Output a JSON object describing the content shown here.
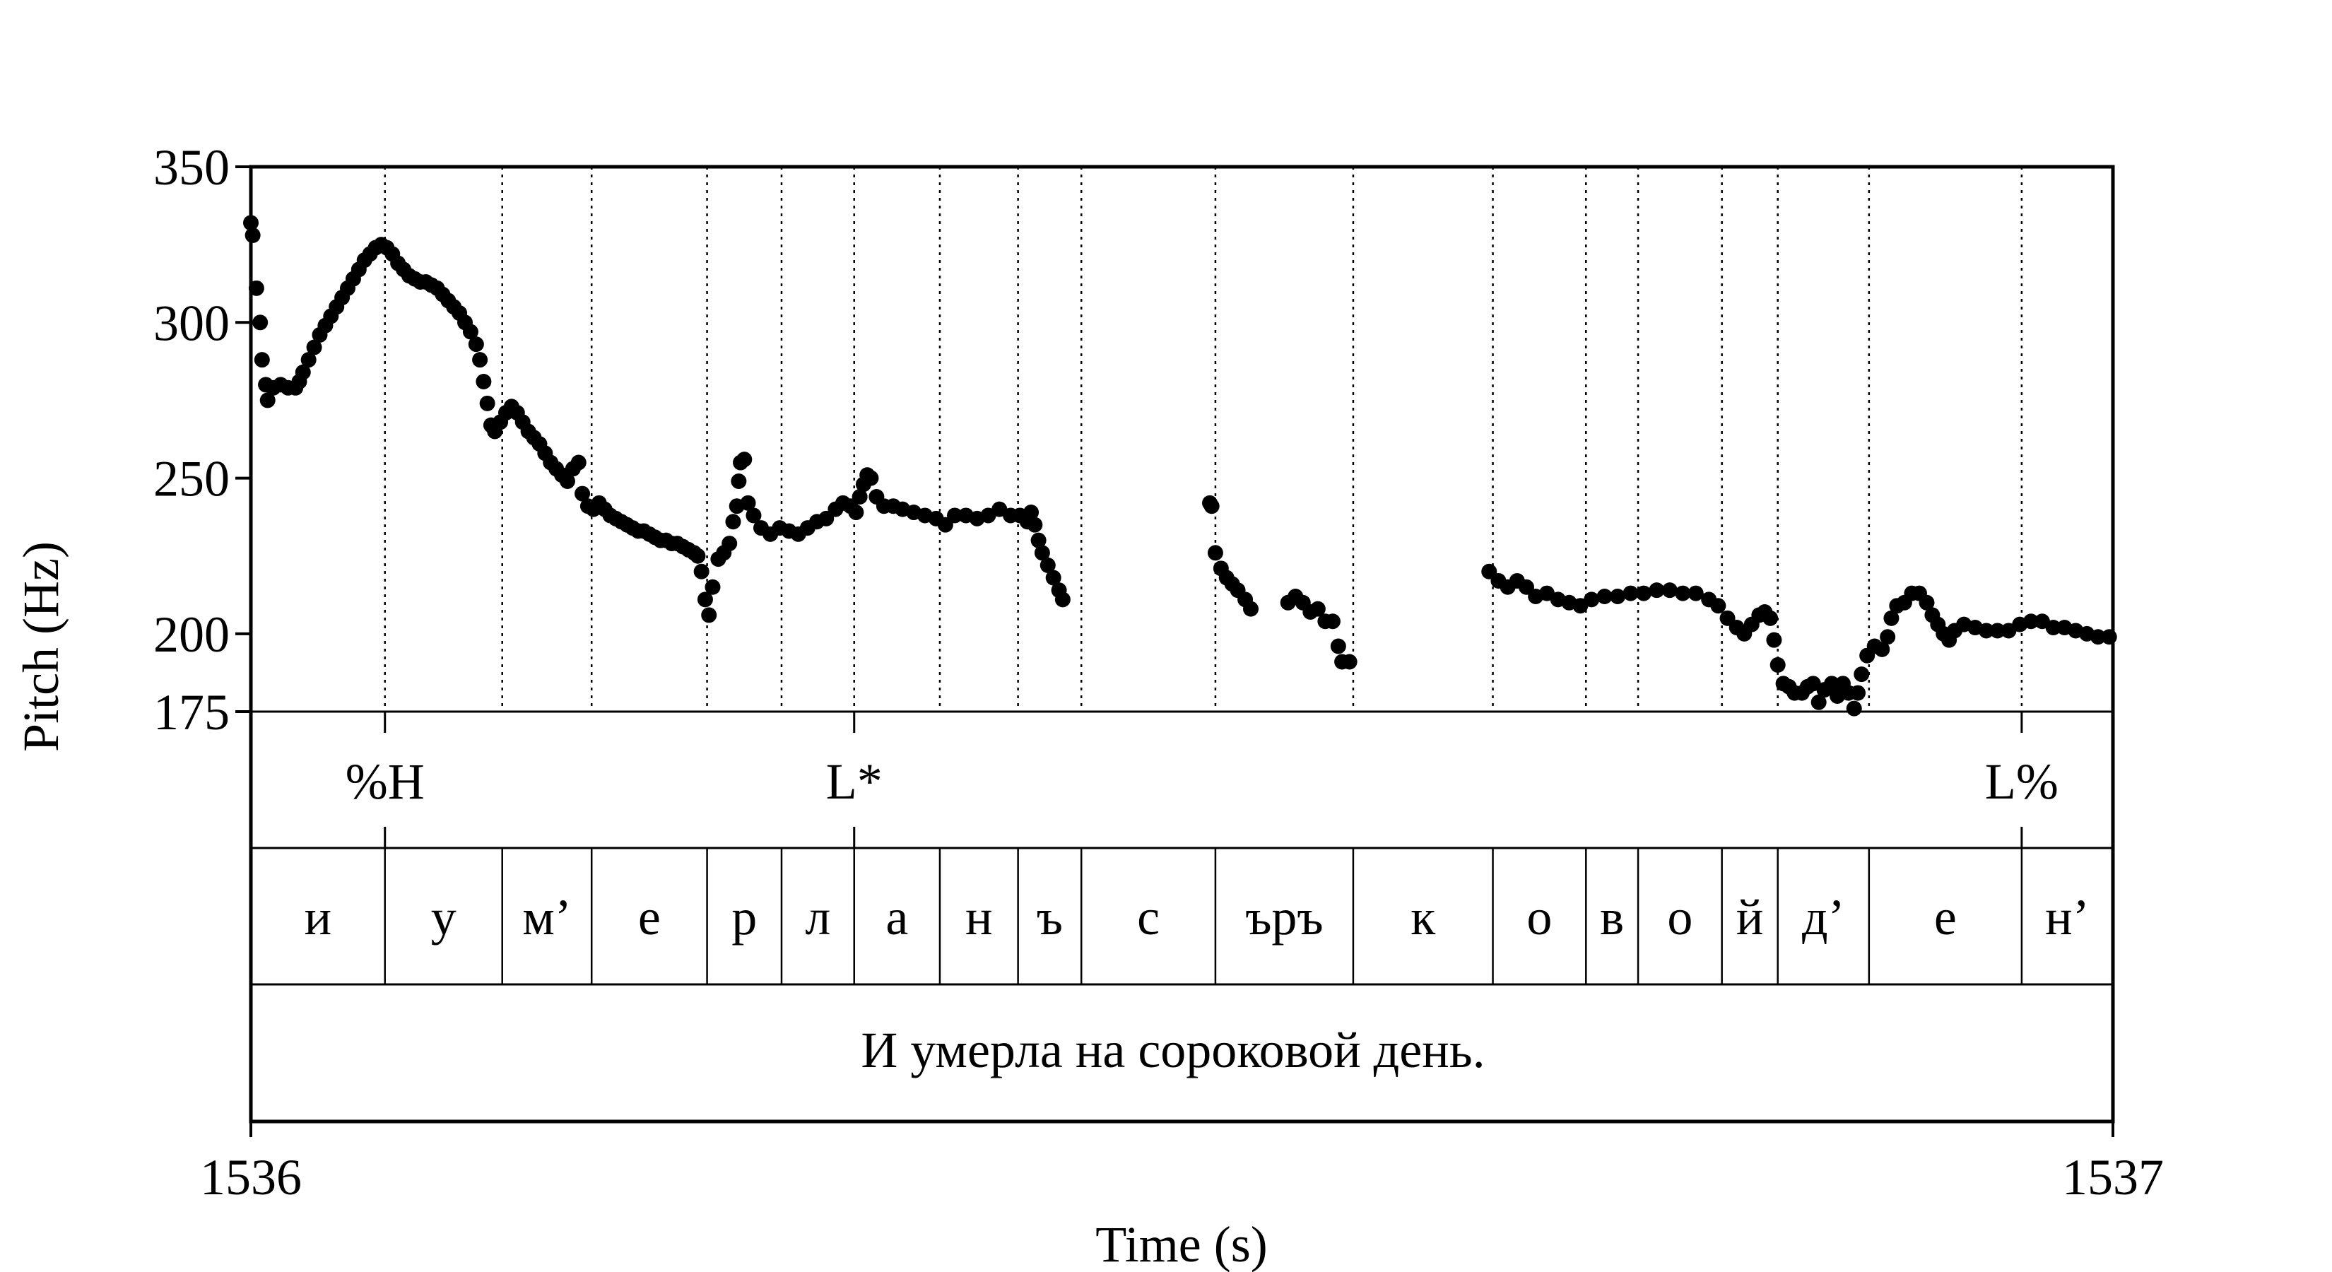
{
  "chart_data": {
    "type": "scatter",
    "xlabel": "Time (s)",
    "ylabel": "Pitch (Hz)",
    "xlim": [
      1536,
      1537
    ],
    "ylim": [
      175,
      350
    ],
    "x_ticks": [
      "1536",
      "1537"
    ],
    "y_ticks": [
      350,
      300,
      250,
      200,
      175
    ],
    "y_tick_labels": [
      "350",
      "300",
      "250",
      "200",
      "175"
    ],
    "grid": "dotted vertical lines at segment boundaries",
    "marker_color": "#000000",
    "pitch_points": [
      [
        1536.0,
        332
      ],
      [
        1536.001,
        328
      ],
      [
        1536.003,
        311
      ],
      [
        1536.005,
        300
      ],
      [
        1536.006,
        288
      ],
      [
        1536.008,
        280
      ],
      [
        1536.009,
        275
      ],
      [
        1536.012,
        279
      ],
      [
        1536.016,
        280
      ],
      [
        1536.02,
        279
      ],
      [
        1536.024,
        279
      ],
      [
        1536.026,
        281
      ],
      [
        1536.028,
        284
      ],
      [
        1536.031,
        288
      ],
      [
        1536.034,
        292
      ],
      [
        1536.037,
        296
      ],
      [
        1536.04,
        299
      ],
      [
        1536.043,
        302
      ],
      [
        1536.046,
        305
      ],
      [
        1536.049,
        308
      ],
      [
        1536.052,
        311
      ],
      [
        1536.055,
        314
      ],
      [
        1536.058,
        317
      ],
      [
        1536.061,
        320
      ],
      [
        1536.064,
        322
      ],
      [
        1536.067,
        324
      ],
      [
        1536.07,
        325
      ],
      [
        1536.073,
        324
      ],
      [
        1536.076,
        322
      ],
      [
        1536.079,
        319
      ],
      [
        1536.082,
        317
      ],
      [
        1536.085,
        315
      ],
      [
        1536.088,
        314
      ],
      [
        1536.091,
        313
      ],
      [
        1536.094,
        313
      ],
      [
        1536.097,
        312
      ],
      [
        1536.1,
        311
      ],
      [
        1536.103,
        309
      ],
      [
        1536.106,
        307
      ],
      [
        1536.109,
        305
      ],
      [
        1536.112,
        303
      ],
      [
        1536.115,
        300
      ],
      [
        1536.118,
        297
      ],
      [
        1536.121,
        293
      ],
      [
        1536.123,
        288
      ],
      [
        1536.125,
        281
      ],
      [
        1536.127,
        274
      ],
      [
        1536.129,
        267
      ],
      [
        1536.131,
        265
      ],
      [
        1536.134,
        268
      ],
      [
        1536.137,
        271
      ],
      [
        1536.14,
        273
      ],
      [
        1536.143,
        271
      ],
      [
        1536.146,
        268
      ],
      [
        1536.149,
        265
      ],
      [
        1536.152,
        263
      ],
      [
        1536.155,
        261
      ],
      [
        1536.158,
        258
      ],
      [
        1536.161,
        255
      ],
      [
        1536.164,
        253
      ],
      [
        1536.167,
        251
      ],
      [
        1536.17,
        249
      ],
      [
        1536.173,
        253
      ],
      [
        1536.176,
        255
      ],
      [
        1536.178,
        245
      ],
      [
        1536.181,
        241
      ],
      [
        1536.184,
        240
      ],
      [
        1536.187,
        242
      ],
      [
        1536.19,
        240
      ],
      [
        1536.193,
        238
      ],
      [
        1536.196,
        237
      ],
      [
        1536.199,
        236
      ],
      [
        1536.202,
        235
      ],
      [
        1536.205,
        234
      ],
      [
        1536.208,
        233
      ],
      [
        1536.211,
        233
      ],
      [
        1536.214,
        232
      ],
      [
        1536.217,
        231
      ],
      [
        1536.22,
        230
      ],
      [
        1536.223,
        230
      ],
      [
        1536.226,
        229
      ],
      [
        1536.229,
        229
      ],
      [
        1536.232,
        228
      ],
      [
        1536.235,
        227
      ],
      [
        1536.238,
        226
      ],
      [
        1536.24,
        225
      ],
      [
        1536.242,
        220
      ],
      [
        1536.244,
        211
      ],
      [
        1536.246,
        206
      ],
      [
        1536.248,
        215
      ],
      [
        1536.251,
        224
      ],
      [
        1536.254,
        226
      ],
      [
        1536.257,
        229
      ],
      [
        1536.259,
        236
      ],
      [
        1536.261,
        241
      ],
      [
        1536.262,
        249
      ],
      [
        1536.263,
        255
      ],
      [
        1536.265,
        256
      ],
      [
        1536.267,
        242
      ],
      [
        1536.27,
        238
      ],
      [
        1536.274,
        234
      ],
      [
        1536.279,
        232
      ],
      [
        1536.284,
        234
      ],
      [
        1536.289,
        233
      ],
      [
        1536.294,
        232
      ],
      [
        1536.299,
        234
      ],
      [
        1536.304,
        236
      ],
      [
        1536.309,
        237
      ],
      [
        1536.314,
        240
      ],
      [
        1536.318,
        242
      ],
      [
        1536.322,
        241
      ],
      [
        1536.325,
        239
      ],
      [
        1536.327,
        244
      ],
      [
        1536.329,
        248
      ],
      [
        1536.331,
        251
      ],
      [
        1536.333,
        250
      ],
      [
        1536.336,
        244
      ],
      [
        1536.34,
        241
      ],
      [
        1536.345,
        241
      ],
      [
        1536.35,
        240
      ],
      [
        1536.356,
        239
      ],
      [
        1536.362,
        238
      ],
      [
        1536.368,
        237
      ],
      [
        1536.373,
        235
      ],
      [
        1536.378,
        238
      ],
      [
        1536.384,
        238
      ],
      [
        1536.39,
        237
      ],
      [
        1536.396,
        238
      ],
      [
        1536.402,
        240
      ],
      [
        1536.408,
        238
      ],
      [
        1536.413,
        238
      ],
      [
        1536.417,
        236
      ],
      [
        1536.419,
        239
      ],
      [
        1536.421,
        235
      ],
      [
        1536.423,
        230
      ],
      [
        1536.425,
        226
      ],
      [
        1536.428,
        222
      ],
      [
        1536.431,
        218
      ],
      [
        1536.434,
        214
      ],
      [
        1536.436,
        211
      ],
      [
        1536.515,
        242
      ],
      [
        1536.516,
        241
      ],
      [
        1536.518,
        226
      ],
      [
        1536.521,
        221
      ],
      [
        1536.524,
        218
      ],
      [
        1536.527,
        216
      ],
      [
        1536.53,
        214
      ],
      [
        1536.534,
        211
      ],
      [
        1536.537,
        208
      ],
      [
        1536.557,
        210
      ],
      [
        1536.561,
        212
      ],
      [
        1536.565,
        210
      ],
      [
        1536.569,
        207
      ],
      [
        1536.573,
        208
      ],
      [
        1536.577,
        204
      ],
      [
        1536.581,
        204
      ],
      [
        1536.584,
        196
      ],
      [
        1536.586,
        191
      ],
      [
        1536.59,
        191
      ],
      [
        1536.665,
        220
      ],
      [
        1536.67,
        217
      ],
      [
        1536.675,
        215
      ],
      [
        1536.68,
        217
      ],
      [
        1536.685,
        215
      ],
      [
        1536.69,
        212
      ],
      [
        1536.696,
        213
      ],
      [
        1536.702,
        211
      ],
      [
        1536.708,
        210
      ],
      [
        1536.714,
        209
      ],
      [
        1536.72,
        211
      ],
      [
        1536.727,
        212
      ],
      [
        1536.734,
        212
      ],
      [
        1536.741,
        213
      ],
      [
        1536.748,
        213
      ],
      [
        1536.755,
        214
      ],
      [
        1536.762,
        214
      ],
      [
        1536.769,
        213
      ],
      [
        1536.776,
        213
      ],
      [
        1536.783,
        211
      ],
      [
        1536.788,
        209
      ],
      [
        1536.793,
        205
      ],
      [
        1536.798,
        202
      ],
      [
        1536.802,
        200
      ],
      [
        1536.806,
        203
      ],
      [
        1536.81,
        206
      ],
      [
        1536.813,
        207
      ],
      [
        1536.816,
        205
      ],
      [
        1536.818,
        198
      ],
      [
        1536.82,
        190
      ],
      [
        1536.823,
        184
      ],
      [
        1536.826,
        183
      ],
      [
        1536.829,
        181
      ],
      [
        1536.833,
        181
      ],
      [
        1536.836,
        183
      ],
      [
        1536.839,
        184
      ],
      [
        1536.842,
        178
      ],
      [
        1536.845,
        182
      ],
      [
        1536.849,
        184
      ],
      [
        1536.852,
        180
      ],
      [
        1536.855,
        184
      ],
      [
        1536.858,
        181
      ],
      [
        1536.861,
        176
      ],
      [
        1536.863,
        181
      ],
      [
        1536.865,
        187
      ],
      [
        1536.868,
        193
      ],
      [
        1536.872,
        196
      ],
      [
        1536.876,
        195
      ],
      [
        1536.879,
        199
      ],
      [
        1536.881,
        205
      ],
      [
        1536.884,
        209
      ],
      [
        1536.888,
        210
      ],
      [
        1536.892,
        213
      ],
      [
        1536.896,
        213
      ],
      [
        1536.9,
        210
      ],
      [
        1536.903,
        206
      ],
      [
        1536.906,
        203
      ],
      [
        1536.909,
        200
      ],
      [
        1536.912,
        198
      ],
      [
        1536.915,
        201
      ],
      [
        1536.92,
        203
      ],
      [
        1536.926,
        202
      ],
      [
        1536.932,
        201
      ],
      [
        1536.938,
        201
      ],
      [
        1536.944,
        201
      ],
      [
        1536.95,
        203
      ],
      [
        1536.956,
        204
      ],
      [
        1536.962,
        204
      ],
      [
        1536.968,
        202
      ],
      [
        1536.974,
        202
      ],
      [
        1536.98,
        201
      ],
      [
        1536.986,
        200
      ],
      [
        1536.992,
        199
      ],
      [
        1536.998,
        199
      ]
    ],
    "boundaries": [
      0.072,
      0.135,
      0.183,
      0.245,
      0.285,
      0.324,
      0.37,
      0.412,
      0.446,
      0.518,
      0.592,
      0.667,
      0.717,
      0.745,
      0.79,
      0.82,
      0.869,
      0.951
    ],
    "tiers": {
      "tones": [
        {
          "t": 0.072,
          "label": "%H"
        },
        {
          "t": 0.324,
          "label": "L*"
        },
        {
          "t": 0.951,
          "label": "L%"
        }
      ],
      "segments": [
        "и",
        "у",
        "м’",
        "е",
        "р",
        "л",
        "а",
        "н",
        "ъ",
        "с",
        "ъръ",
        "к",
        "о",
        "в",
        "о",
        "й",
        "д’",
        "е",
        "н’"
      ],
      "sentence": "И умерла на сороковой день."
    }
  }
}
